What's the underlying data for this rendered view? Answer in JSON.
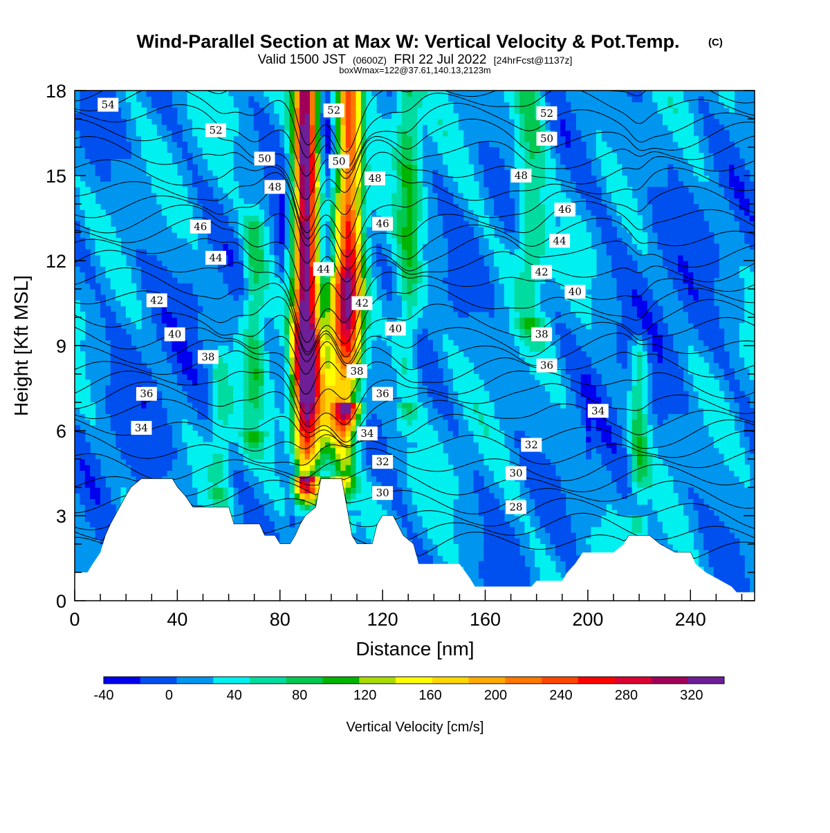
{
  "chart_data": {
    "type": "heatmap",
    "title": "Wind-Parallel Section at Max W: Vertical Velocity & Pot.Temp.",
    "title_mark": "(C)",
    "subtitle_parts": [
      "Valid 1500 JST",
      "(0600Z)",
      "FRI 22 Jul 2022",
      "[24hrFcst@1137z]"
    ],
    "box_label": "boxWmax=122@37.61,140.13,2123m",
    "xlabel": "Distance [nm]",
    "ylabel": "Height [Kft MSL]",
    "xlim": [
      0,
      265
    ],
    "ylim": [
      0,
      18
    ],
    "x_ticks": [
      0,
      40,
      80,
      120,
      160,
      200,
      240
    ],
    "y_ticks": [
      0,
      3,
      6,
      9,
      12,
      15,
      18
    ],
    "colorbar": {
      "label": "Vertical Velocity [cm/s]",
      "min": -40,
      "max": 340,
      "step": 20,
      "tick_labels": [
        "-40",
        "0",
        "40",
        "80",
        "120",
        "160",
        "200",
        "240",
        "280",
        "320"
      ],
      "colors": [
        "#0000ee",
        "#0050f0",
        "#0096f0",
        "#00f0f0",
        "#00dca0",
        "#00c850",
        "#00b400",
        "#aadc00",
        "#ffff00",
        "#ffd700",
        "#ffaa00",
        "#ff7800",
        "#ff4600",
        "#ff0000",
        "#dc0032",
        "#a0005a",
        "#6e1e96"
      ]
    },
    "background_value": 10,
    "updrafts": [
      {
        "x": 90,
        "halfwidth": 4.5,
        "bottom": 4.5,
        "top": 18,
        "peak": 290
      },
      {
        "x": 107,
        "halfwidth": 5,
        "bottom": 7,
        "top": 18,
        "peak": 200
      },
      {
        "x": 102,
        "halfwidth": 7,
        "bottom": 4.5,
        "top": 11,
        "peak": 105
      },
      {
        "x": 92,
        "halfwidth": 6,
        "bottom": 4,
        "top": 9,
        "peak": 90
      },
      {
        "x": 130,
        "halfwidth": 4.5,
        "bottom": 7,
        "top": 18,
        "peak": 60
      },
      {
        "x": 178,
        "halfwidth": 6,
        "bottom": 10,
        "top": 18,
        "peak": 55
      },
      {
        "x": 70,
        "halfwidth": 4.5,
        "bottom": 6,
        "top": 13,
        "peak": 60
      },
      {
        "x": 220,
        "halfwidth": 3.5,
        "bottom": 3,
        "top": 8.5,
        "peak": 60
      },
      {
        "x": 57,
        "halfwidth": 4,
        "bottom": 4,
        "top": 8,
        "peak": 40
      },
      {
        "x": 105,
        "halfwidth": 4,
        "bottom": 3,
        "top": 6.5,
        "peak": 60
      }
    ],
    "downdrafts": [
      {
        "x": 98,
        "halfwidth": 2.5,
        "bottom": 9,
        "top": 18,
        "peak": -30
      },
      {
        "x": 80,
        "halfwidth": 1.5,
        "bottom": 12,
        "top": 14,
        "peak": -30
      },
      {
        "x": 84,
        "halfwidth": 1.5,
        "bottom": 3,
        "top": 4.5,
        "peak": -30
      },
      {
        "x": 200,
        "halfwidth": 1.2,
        "bottom": 5.8,
        "top": 7,
        "peak": -30
      },
      {
        "x": 30,
        "halfwidth": 20,
        "bottom": 3,
        "top": 12,
        "peak": -10
      },
      {
        "x": 225,
        "halfwidth": 25,
        "bottom": 4,
        "top": 16,
        "peak": -10
      }
    ],
    "terrain": [
      [
        0,
        1
      ],
      [
        5,
        1
      ],
      [
        7,
        1.3
      ],
      [
        10,
        1.7
      ],
      [
        12,
        2.3
      ],
      [
        14,
        2.7
      ],
      [
        20,
        3.7
      ],
      [
        22,
        4
      ],
      [
        26,
        4.3
      ],
      [
        38,
        4.3
      ],
      [
        40,
        4
      ],
      [
        43,
        3.7
      ],
      [
        46,
        3.3
      ],
      [
        60,
        3.3
      ],
      [
        62,
        2.7
      ],
      [
        72,
        2.7
      ],
      [
        74,
        2.3
      ],
      [
        78,
        2.3
      ],
      [
        80,
        2
      ],
      [
        84,
        2
      ],
      [
        86,
        2.3
      ],
      [
        88,
        2.7
      ],
      [
        90,
        3
      ],
      [
        94,
        3.3
      ],
      [
        96,
        4.3
      ],
      [
        104,
        4.3
      ],
      [
        106,
        3.3
      ],
      [
        108,
        2.3
      ],
      [
        110,
        2
      ],
      [
        116,
        2
      ],
      [
        118,
        2.7
      ],
      [
        120,
        3
      ],
      [
        124,
        3
      ],
      [
        128,
        2.3
      ],
      [
        132,
        2
      ],
      [
        134,
        1.3
      ],
      [
        140,
        1.3
      ],
      [
        150,
        1.3
      ],
      [
        154,
        0.8
      ],
      [
        156,
        0.5
      ],
      [
        160,
        0.5
      ],
      [
        170,
        0.5
      ],
      [
        178,
        0.5
      ],
      [
        180,
        0.7
      ],
      [
        186,
        0.7
      ],
      [
        190,
        0.7
      ],
      [
        192,
        1
      ],
      [
        195,
        1.3
      ],
      [
        198,
        1.7
      ],
      [
        210,
        1.7
      ],
      [
        214,
        2
      ],
      [
        216,
        2.3
      ],
      [
        224,
        2.3
      ],
      [
        228,
        2
      ],
      [
        234,
        1.7
      ],
      [
        240,
        1.7
      ],
      [
        242,
        1.3
      ],
      [
        246,
        1
      ],
      [
        252,
        0.7
      ],
      [
        256,
        0.5
      ],
      [
        258,
        0.3
      ],
      [
        265,
        0.3
      ]
    ],
    "isentropes": {
      "start": 27,
      "end": 55,
      "step": 1,
      "base_height": 2.5,
      "kft_per_K": 0.58
    },
    "isentrope_labels": [
      {
        "text": "54",
        "x": 13,
        "y": 17.5
      },
      {
        "text": "52",
        "x": 55,
        "y": 16.6
      },
      {
        "text": "52",
        "x": 101,
        "y": 17.3
      },
      {
        "text": "52",
        "x": 184,
        "y": 17.2
      },
      {
        "text": "50",
        "x": 74,
        "y": 15.6
      },
      {
        "text": "50",
        "x": 103,
        "y": 15.5
      },
      {
        "text": "50",
        "x": 184,
        "y": 16.3
      },
      {
        "text": "48",
        "x": 78,
        "y": 14.6
      },
      {
        "text": "48",
        "x": 117,
        "y": 14.9
      },
      {
        "text": "48",
        "x": 174,
        "y": 15.0
      },
      {
        "text": "46",
        "x": 49,
        "y": 13.2
      },
      {
        "text": "46",
        "x": 120,
        "y": 13.3
      },
      {
        "text": "46",
        "x": 191,
        "y": 13.8
      },
      {
        "text": "44",
        "x": 55,
        "y": 12.1
      },
      {
        "text": "44",
        "x": 97,
        "y": 11.7
      },
      {
        "text": "44",
        "x": 189,
        "y": 12.7
      },
      {
        "text": "42",
        "x": 32,
        "y": 10.6
      },
      {
        "text": "42",
        "x": 112,
        "y": 10.5
      },
      {
        "text": "42",
        "x": 182,
        "y": 11.6
      },
      {
        "text": "40",
        "x": 39,
        "y": 9.4
      },
      {
        "text": "40",
        "x": 125,
        "y": 9.6
      },
      {
        "text": "40",
        "x": 195,
        "y": 10.9
      },
      {
        "text": "38",
        "x": 52,
        "y": 8.6
      },
      {
        "text": "38",
        "x": 110,
        "y": 8.1
      },
      {
        "text": "38",
        "x": 182,
        "y": 9.4
      },
      {
        "text": "36",
        "x": 28,
        "y": 7.3
      },
      {
        "text": "36",
        "x": 120,
        "y": 7.3
      },
      {
        "text": "36",
        "x": 184,
        "y": 8.3
      },
      {
        "text": "34",
        "x": 26,
        "y": 6.1
      },
      {
        "text": "34",
        "x": 114,
        "y": 5.9
      },
      {
        "text": "34",
        "x": 204,
        "y": 6.7
      },
      {
        "text": "32",
        "x": 120,
        "y": 4.9
      },
      {
        "text": "32",
        "x": 178,
        "y": 5.5
      },
      {
        "text": "30",
        "x": 120,
        "y": 3.8
      },
      {
        "text": "30",
        "x": 172,
        "y": 4.5
      },
      {
        "text": "28",
        "x": 172,
        "y": 3.3
      }
    ]
  }
}
